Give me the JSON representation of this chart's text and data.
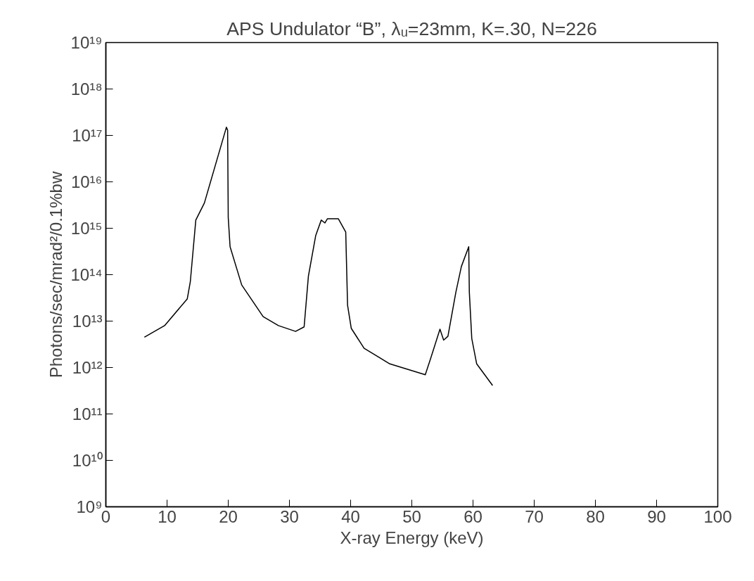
{
  "chart_data": {
    "type": "line",
    "title": "APS Undulator “B”, λᵤ=23mm, K=.30, N=226",
    "xlabel": "X-ray Energy (keV)",
    "ylabel": "Photons/sec/mrad²/0.1%bw",
    "log": "y",
    "grid": false,
    "marker": "none",
    "line_style": "solid",
    "xlim": [
      0,
      100
    ],
    "xticks": [
      0,
      10,
      20,
      30,
      40,
      50,
      60,
      70,
      80,
      90,
      100
    ],
    "ylim": [
      1000000000.0,
      1e+19
    ],
    "yticks": [
      {
        "value": 1000000000.0,
        "label": "10⁹"
      },
      {
        "value": 10000000000.0,
        "label": "10¹⁰"
      },
      {
        "value": 100000000000.0,
        "label": "10¹¹"
      },
      {
        "value": 1000000000000.0,
        "label": "10¹²"
      },
      {
        "value": 10000000000000.0,
        "label": "10¹³"
      },
      {
        "value": 100000000000000.0,
        "label": "10¹⁴"
      },
      {
        "value": 1000000000000000.0,
        "label": "10¹⁵"
      },
      {
        "value": 1e+16,
        "label": "10¹⁶"
      },
      {
        "value": 1e+17,
        "label": "10¹⁷"
      },
      {
        "value": 1e+18,
        "label": "10¹⁸"
      },
      {
        "value": 1e+19,
        "label": "10¹⁹"
      }
    ],
    "series": [
      {
        "color": "#000000",
        "x": [
          6.3,
          9.6,
          13.3,
          13.8,
          14.7,
          16.1,
          19.7,
          19.9,
          20.0,
          20.3,
          22.2,
          25.7,
          28.2,
          31.0,
          32.4,
          33.1,
          34.3,
          35.2,
          35.8,
          36.2,
          38.0,
          39.2,
          39.5,
          40.1,
          42.2,
          46.4,
          52.2,
          53.1,
          54.6,
          55.2,
          55.9,
          57.2,
          58.1,
          59.3,
          59.4,
          59.8,
          60.6,
          63.2
        ],
        "values": [
          4500000000000.0,
          8000000000000.0,
          30000000000000.0,
          70000000000000.0,
          1500000000000000.0,
          3500000000000000.0,
          1.5e+17,
          1.3e+17,
          1700000000000000.0,
          400000000000000.0,
          60000000000000.0,
          12500000000000.0,
          8000000000000.0,
          6000000000000.0,
          7500000000000.0,
          93000000000000.0,
          700000000000000.0,
          1500000000000000.0,
          1300000000000000.0,
          1600000000000000.0,
          1600000000000000.0,
          830000000000000.0,
          22000000000000.0,
          7000000000000.0,
          2600000000000.0,
          1200000000000.0,
          700000000000.0,
          1600000000000.0,
          6700000000000.0,
          3900000000000.0,
          4700000000000.0,
          42000000000000.0,
          150000000000000.0,
          400000000000000.0,
          42000000000000.0,
          4200000000000.0,
          1200000000000.0,
          410000000000.0
        ]
      }
    ]
  }
}
